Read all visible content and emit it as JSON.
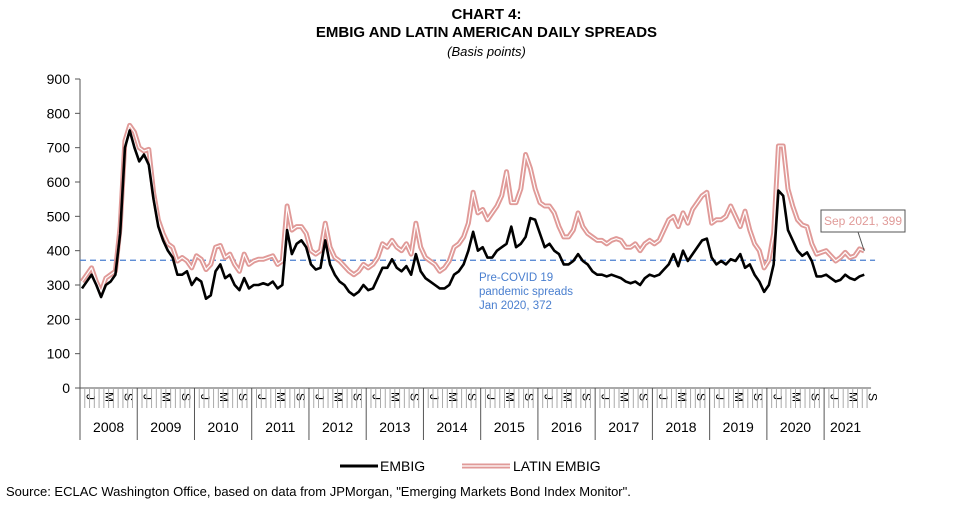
{
  "chart_data": {
    "type": "line",
    "title": "CHART 4:",
    "title_line2": "EMBIG AND LATIN AMERICAN DAILY SPREADS",
    "subtitle": "(Basis points)",
    "ylim": [
      0,
      900
    ],
    "yticks": [
      0,
      100,
      200,
      300,
      400,
      500,
      600,
      700,
      800,
      900
    ],
    "x_start": "2008-01",
    "x_end": "2021-09",
    "month_labels": {
      "0": "J",
      "4": "M",
      "8": "S"
    },
    "years": [
      "2008",
      "2009",
      "2010",
      "2011",
      "2012",
      "2013",
      "2014",
      "2015",
      "2016",
      "2017",
      "2018",
      "2019",
      "2020",
      "2021"
    ],
    "grid": false,
    "legend_placement": "bottom",
    "series": [
      {
        "name": "EMBIG",
        "color": "#000000",
        "values": [
          290,
          310,
          330,
          300,
          265,
          300,
          310,
          330,
          450,
          700,
          750,
          700,
          660,
          680,
          650,
          550,
          470,
          430,
          400,
          380,
          330,
          330,
          340,
          300,
          320,
          310,
          260,
          270,
          340,
          360,
          320,
          330,
          300,
          285,
          320,
          290,
          300,
          300,
          305,
          300,
          310,
          290,
          300,
          460,
          390,
          420,
          430,
          410,
          360,
          345,
          350,
          430,
          360,
          330,
          310,
          300,
          280,
          270,
          280,
          300,
          285,
          290,
          320,
          350,
          350,
          375,
          350,
          340,
          355,
          330,
          390,
          340,
          320,
          310,
          300,
          290,
          290,
          300,
          330,
          340,
          360,
          400,
          455,
          400,
          410,
          380,
          380,
          400,
          410,
          420,
          470,
          410,
          420,
          440,
          495,
          490,
          450,
          410,
          420,
          400,
          390,
          360,
          360,
          370,
          390,
          370,
          360,
          340,
          330,
          330,
          325,
          330,
          325,
          320,
          310,
          305,
          310,
          300,
          320,
          330,
          325,
          330,
          345,
          360,
          390,
          355,
          400,
          370,
          390,
          410,
          430,
          435,
          380,
          360,
          370,
          360,
          375,
          370,
          390,
          350,
          360,
          330,
          310,
          280,
          300,
          360,
          575,
          560,
          460,
          430,
          400,
          385,
          395,
          370,
          325,
          325,
          330,
          320,
          310,
          315,
          330,
          320,
          315,
          325,
          330
        ]
      },
      {
        "name": "LATIN EMBIG",
        "color": "#e09a98",
        "values": [
          310,
          330,
          350,
          310,
          280,
          320,
          330,
          340,
          470,
          720,
          765,
          745,
          700,
          690,
          695,
          570,
          490,
          450,
          420,
          410,
          370,
          380,
          370,
          350,
          385,
          375,
          345,
          360,
          410,
          415,
          380,
          390,
          360,
          340,
          390,
          360,
          370,
          375,
          375,
          380,
          385,
          360,
          370,
          530,
          460,
          470,
          470,
          450,
          400,
          390,
          400,
          480,
          410,
          380,
          370,
          355,
          340,
          330,
          340,
          360,
          350,
          360,
          380,
          420,
          410,
          430,
          410,
          400,
          420,
          390,
          480,
          410,
          380,
          370,
          360,
          340,
          350,
          370,
          410,
          420,
          440,
          480,
          570,
          510,
          520,
          490,
          510,
          530,
          560,
          630,
          540,
          540,
          580,
          680,
          640,
          580,
          540,
          530,
          530,
          510,
          470,
          440,
          440,
          460,
          510,
          470,
          450,
          440,
          430,
          430,
          420,
          430,
          435,
          430,
          410,
          410,
          420,
          400,
          420,
          430,
          420,
          430,
          460,
          490,
          500,
          470,
          510,
          480,
          520,
          540,
          560,
          570,
          480,
          490,
          490,
          500,
          530,
          500,
          470,
          515,
          460,
          420,
          400,
          350,
          372,
          450,
          705,
          705,
          580,
          530,
          490,
          475,
          470,
          420,
          390,
          395,
          400,
          385,
          370,
          380,
          395,
          380,
          385,
          405,
          399
        ]
      }
    ],
    "reference_line": {
      "value": 372,
      "color": "#4a7fcf",
      "label": [
        "Pre-COVID 19",
        "pandemic spreads",
        "Jan 2020, 372"
      ]
    },
    "annotation": {
      "text": "Sep 2021, 399",
      "color": "#e09a98"
    }
  },
  "source": "Source: ECLAC Washington Office, based on data from JPMorgan, \"Emerging Markets Bond Index Monitor\"."
}
